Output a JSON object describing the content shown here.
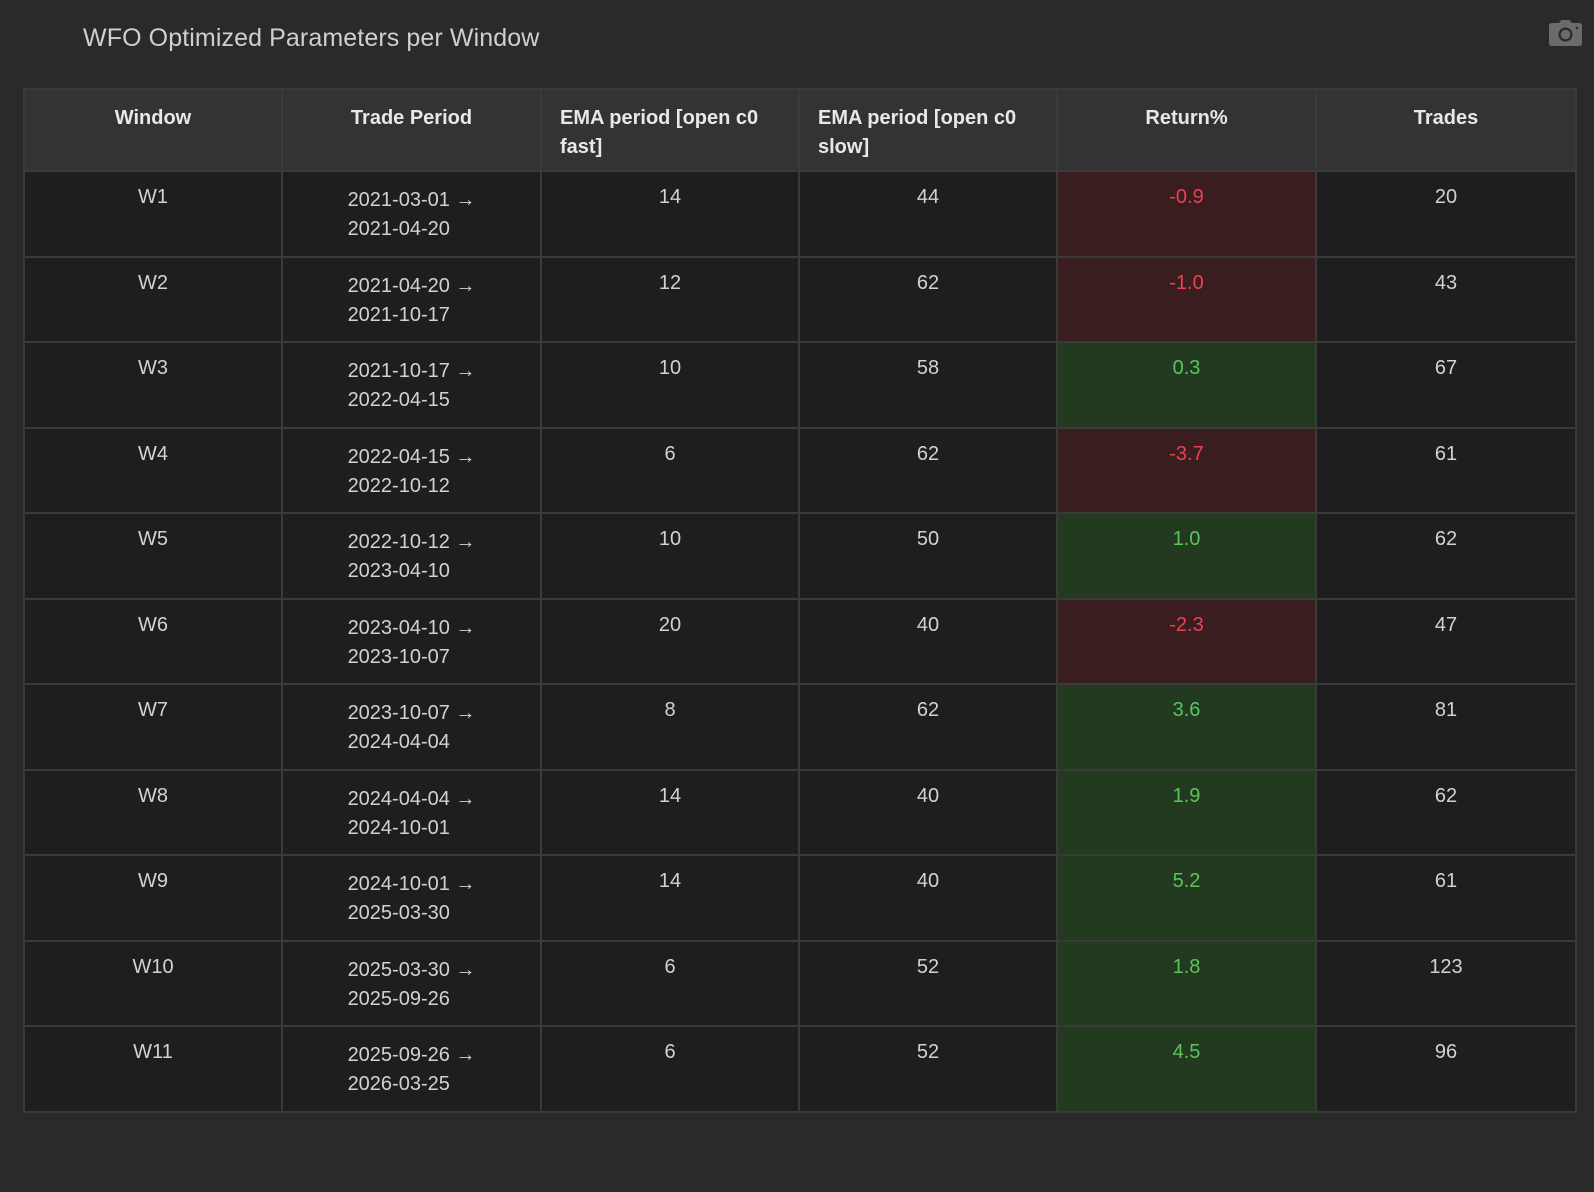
{
  "title": "WFO Optimized Parameters per Window",
  "toolbar": {
    "camera_icon": "camera-icon"
  },
  "colors": {
    "background": "#2a2a2a",
    "header_bg": "#333333",
    "cell_bg": "#1e1e1e",
    "negative_bg": "#3a1d1f",
    "negative_text": "#e8434f",
    "positive_bg": "#233a21",
    "positive_text": "#58c65a"
  },
  "table": {
    "columns": [
      "Window",
      "Trade Period",
      "EMA period [open c0 fast]",
      "EMA period [open c0 slow]",
      "Return%",
      "Trades"
    ],
    "rows": [
      {
        "window": "W1",
        "period_start": "2021-03-01 →",
        "period_end": "2021-04-20",
        "ema_fast": "14",
        "ema_slow": "44",
        "return": "-0.9",
        "sign": "neg",
        "trades": "20"
      },
      {
        "window": "W2",
        "period_start": "2021-04-20 →",
        "period_end": "2021-10-17",
        "ema_fast": "12",
        "ema_slow": "62",
        "return": "-1.0",
        "sign": "neg",
        "trades": "43"
      },
      {
        "window": "W3",
        "period_start": "2021-10-17 →",
        "period_end": "2022-04-15",
        "ema_fast": "10",
        "ema_slow": "58",
        "return": "0.3",
        "sign": "pos",
        "trades": "67"
      },
      {
        "window": "W4",
        "period_start": "2022-04-15 →",
        "period_end": "2022-10-12",
        "ema_fast": "6",
        "ema_slow": "62",
        "return": "-3.7",
        "sign": "neg",
        "trades": "61"
      },
      {
        "window": "W5",
        "period_start": "2022-10-12 →",
        "period_end": "2023-04-10",
        "ema_fast": "10",
        "ema_slow": "50",
        "return": "1.0",
        "sign": "pos",
        "trades": "62"
      },
      {
        "window": "W6",
        "period_start": "2023-04-10 →",
        "period_end": "2023-10-07",
        "ema_fast": "20",
        "ema_slow": "40",
        "return": "-2.3",
        "sign": "neg",
        "trades": "47"
      },
      {
        "window": "W7",
        "period_start": "2023-10-07 →",
        "period_end": "2024-04-04",
        "ema_fast": "8",
        "ema_slow": "62",
        "return": "3.6",
        "sign": "pos",
        "trades": "81"
      },
      {
        "window": "W8",
        "period_start": "2024-04-04 →",
        "period_end": "2024-10-01",
        "ema_fast": "14",
        "ema_slow": "40",
        "return": "1.9",
        "sign": "pos",
        "trades": "62"
      },
      {
        "window": "W9",
        "period_start": "2024-10-01 →",
        "period_end": "2025-03-30",
        "ema_fast": "14",
        "ema_slow": "40",
        "return": "5.2",
        "sign": "pos",
        "trades": "61"
      },
      {
        "window": "W10",
        "period_start": "2025-03-30 →",
        "period_end": "2025-09-26",
        "ema_fast": "6",
        "ema_slow": "52",
        "return": "1.8",
        "sign": "pos",
        "trades": "123"
      },
      {
        "window": "W11",
        "period_start": "2025-09-26 →",
        "period_end": "2026-03-25",
        "ema_fast": "6",
        "ema_slow": "52",
        "return": "4.5",
        "sign": "pos",
        "trades": "96"
      }
    ]
  }
}
